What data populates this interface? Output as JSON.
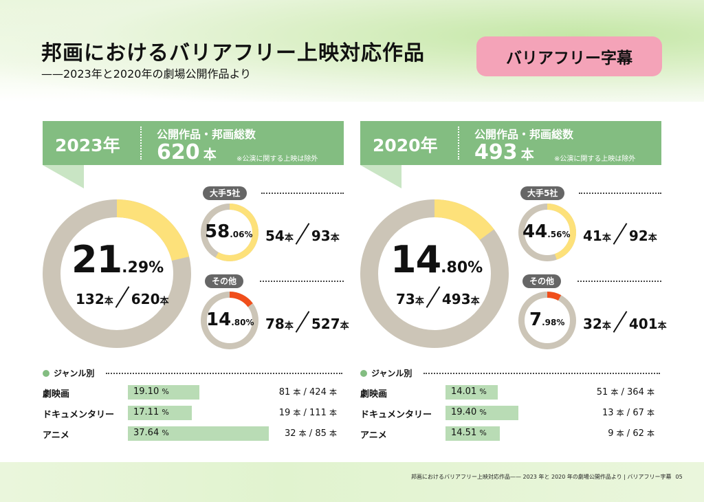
{
  "header": {
    "title": "邦画におけるバリアフリー上映対応作品",
    "subtitle": "——2023年と2020年の劇場公開作品より",
    "badge": "バリアフリー字幕"
  },
  "colors": {
    "accent_green": "#83bd81",
    "donut_track": "#ccc5b7",
    "major_highlight": "#fde17a",
    "other_highlight": "#f04e1b",
    "genre_bar": "#b9dcb5",
    "badge_pink": "#f4a3b8",
    "tag_gray": "#666666"
  },
  "labels": {
    "total_label": "公開作品・邦画総数",
    "total_unit": "本",
    "note": "※公演に関する上映は除外",
    "major_tag": "大手5社",
    "other_tag": "その他",
    "genre_heading": "ジャンル別",
    "unit": "本",
    "pct_unit": "%"
  },
  "chart_data": [
    {
      "type": "pie",
      "year": "2023年",
      "total": "620",
      "overall": {
        "int": "21",
        "dec": ".29%",
        "value": 21.29,
        "num": "132",
        "den": "620"
      },
      "major": {
        "int": "58",
        "dec": ".06%",
        "value": 58.06,
        "num": "54",
        "den": "93"
      },
      "other": {
        "int": "14",
        "dec": ".80%",
        "value": 14.8,
        "num": "78",
        "den": "527"
      },
      "genres": [
        {
          "name": "劇映画",
          "pct": "19.10",
          "value": 19.1,
          "num": "81",
          "den": "424"
        },
        {
          "name": "ドキュメンタリー",
          "pct": "17.11",
          "value": 17.11,
          "num": "19",
          "den": "111"
        },
        {
          "name": "アニメ",
          "pct": "37.64",
          "value": 37.64,
          "num": "32",
          "den": "85"
        }
      ]
    },
    {
      "type": "pie",
      "year": "2020年",
      "total": "493",
      "overall": {
        "int": "14",
        "dec": ".80%",
        "value": 14.8,
        "num": "73",
        "den": "493"
      },
      "major": {
        "int": "44",
        "dec": ".56%",
        "value": 44.56,
        "num": "41",
        "den": "92"
      },
      "other": {
        "int": "7",
        "dec": ".98%",
        "value": 7.98,
        "num": "32",
        "den": "401"
      },
      "genres": [
        {
          "name": "劇映画",
          "pct": "14.01",
          "value": 14.01,
          "num": "51",
          "den": "364"
        },
        {
          "name": "ドキュメンタリー",
          "pct": "19.40",
          "value": 19.4,
          "num": "13",
          "den": "67"
        },
        {
          "name": "アニメ",
          "pct": "14.51",
          "value": 14.51,
          "num": "9",
          "den": "62"
        }
      ]
    }
  ],
  "footer": {
    "text": "邦画におけるバリアフリー上映対応作品—— 2023 年と 2020 年の劇場公開作品より | バリアフリー字幕",
    "page": "05"
  }
}
